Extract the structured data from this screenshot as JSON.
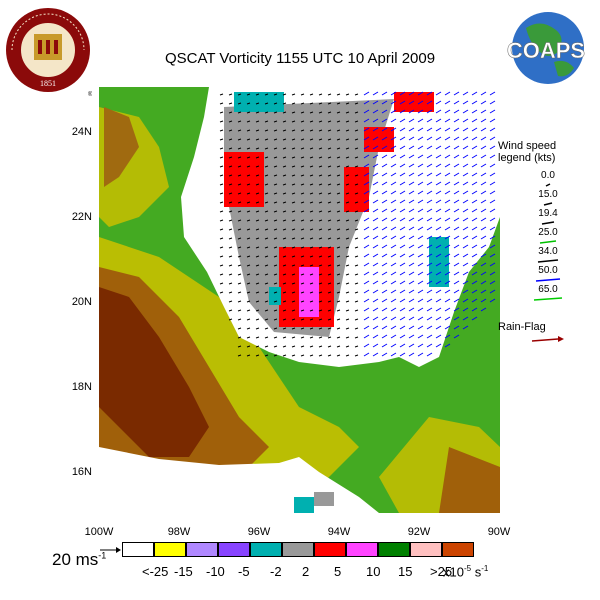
{
  "title": "QSCAT Vorticity 1155 UTC 10 April 2009",
  "logos": {
    "fsu_text": "FLORIDA STATE UNIVERSITY",
    "fsu_year": "1851",
    "coaps_text": "COAPS"
  },
  "axes": {
    "lat_labels": [
      "24N",
      "22N",
      "20N",
      "18N",
      "16N"
    ],
    "lon_labels": [
      "100W",
      "98W",
      "96W",
      "94W",
      "92W",
      "90W"
    ]
  },
  "wind_legend": {
    "title_line1": "Wind speed",
    "title_line2": "legend (kts)",
    "entries": [
      {
        "value": "0.0",
        "color": "#000000"
      },
      {
        "value": "15.0",
        "color": "#000000"
      },
      {
        "value": "19.4",
        "color": "#000000"
      },
      {
        "value": "25.0",
        "color": "#00c000"
      },
      {
        "value": "34.0",
        "color": "#000000"
      },
      {
        "value": "50.0",
        "color": "#0000ff"
      },
      {
        "value": "65.0",
        "color": "#00cc00"
      }
    ],
    "rain_flag_label": "Rain-Flag",
    "rain_flag_color": "#990000"
  },
  "scale": {
    "label": "20 ms",
    "exponent": "-1"
  },
  "colorbar": {
    "colors": [
      "#ffffff",
      "#ffff00",
      "#b088ff",
      "#8844ff",
      "#00b0b0",
      "#999999",
      "#ff0000",
      "#ff44ff",
      "#008000",
      "#ffc0c0",
      "#cc4400"
    ],
    "labels": [
      "<-25",
      "-15",
      "-10",
      "-5",
      "-2",
      "2",
      "5",
      "10",
      "15",
      ">25"
    ],
    "unit": "x10",
    "unit_exp": "-5",
    "unit_suffix": "s",
    "unit_suffix_exp": "-1"
  },
  "colors": {
    "ocean": "#ffffff",
    "land_low": "#44aa22",
    "land_mid": "#c8c000",
    "land_high": "#7a2a00"
  }
}
